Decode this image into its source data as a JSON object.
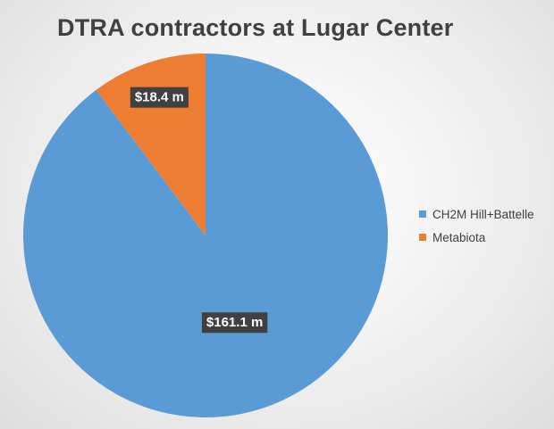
{
  "chart_data": {
    "type": "pie",
    "title": "DTRA contractors at Lugar Center",
    "start_angle_deg": 0,
    "direction": "clockwise",
    "legend_position": "right",
    "slices": [
      {
        "name": "CH2M Hill+Battelle",
        "value": 161.1,
        "label": "$161.1 m",
        "color": "#5b9bd5"
      },
      {
        "name": "Metabiota",
        "value": 18.4,
        "label": "$18.4 m",
        "color": "#ed7d31"
      }
    ]
  }
}
